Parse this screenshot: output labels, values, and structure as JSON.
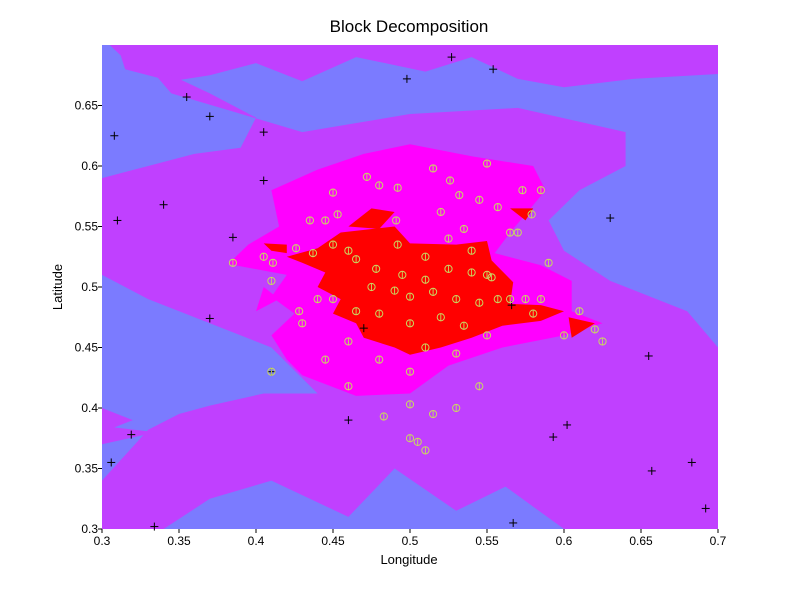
{
  "chart_data": {
    "type": "contour",
    "title": "Block Decomposition",
    "xlabel": "Longitude",
    "ylabel": "Latitude",
    "xlim": [
      0.3,
      0.7
    ],
    "ylim": [
      0.3,
      0.7
    ],
    "x_ticks": [
      {
        "value": 0.3,
        "label": "0.3"
      },
      {
        "value": 0.35,
        "label": "0.35"
      },
      {
        "value": 0.4,
        "label": "0.4"
      },
      {
        "value": 0.45,
        "label": "0.45"
      },
      {
        "value": 0.5,
        "label": "0.5"
      },
      {
        "value": 0.55,
        "label": "0.55"
      },
      {
        "value": 0.6,
        "label": "0.6"
      },
      {
        "value": 0.65,
        "label": "0.65"
      },
      {
        "value": 0.7,
        "label": "0.7"
      }
    ],
    "y_ticks": [
      {
        "value": 0.3,
        "label": "0.3"
      },
      {
        "value": 0.35,
        "label": "0.35"
      },
      {
        "value": 0.4,
        "label": "0.4"
      },
      {
        "value": 0.45,
        "label": "0.45"
      },
      {
        "value": 0.5,
        "label": "0.5"
      },
      {
        "value": 0.55,
        "label": "0.55"
      },
      {
        "value": 0.6,
        "label": "0.6"
      },
      {
        "value": 0.65,
        "label": "0.65"
      }
    ],
    "grid": false,
    "legend": "none",
    "colors": {
      "low": "#7b7bff",
      "mid": "#c040ff",
      "high": "#ff00ff",
      "top": "#ff0000",
      "marker_black": "#000000",
      "marker_yellow": "#c8d860",
      "background": "#ffffff"
    },
    "regions": [
      {
        "level": "mid",
        "points": [
          [
            0.31,
            0.7
          ],
          [
            0.7,
            0.7
          ],
          [
            0.7,
            0.676
          ],
          [
            0.645,
            0.672
          ],
          [
            0.6,
            0.665
          ],
          [
            0.57,
            0.672
          ],
          [
            0.54,
            0.69
          ],
          [
            0.51,
            0.678
          ],
          [
            0.465,
            0.69
          ],
          [
            0.43,
            0.67
          ],
          [
            0.4,
            0.685
          ],
          [
            0.37,
            0.675
          ],
          [
            0.345,
            0.67
          ],
          [
            0.315,
            0.68
          ]
        ]
      },
      {
        "level": "mid",
        "points": [
          [
            0.318,
            0.7
          ],
          [
            0.345,
            0.66
          ],
          [
            0.385,
            0.645
          ],
          [
            0.43,
            0.628
          ],
          [
            0.5,
            0.643
          ],
          [
            0.57,
            0.648
          ],
          [
            0.64,
            0.628
          ],
          [
            0.64,
            0.6
          ],
          [
            0.61,
            0.58
          ],
          [
            0.59,
            0.555
          ],
          [
            0.6,
            0.53
          ],
          [
            0.63,
            0.505
          ],
          [
            0.68,
            0.48
          ],
          [
            0.7,
            0.45
          ],
          [
            0.7,
            0.3
          ],
          [
            0.6,
            0.3
          ],
          [
            0.562,
            0.335
          ],
          [
            0.53,
            0.315
          ],
          [
            0.49,
            0.35
          ],
          [
            0.46,
            0.31
          ],
          [
            0.41,
            0.34
          ],
          [
            0.37,
            0.325
          ],
          [
            0.34,
            0.3
          ],
          [
            0.3,
            0.3
          ],
          [
            0.3,
            0.34
          ],
          [
            0.33,
            0.382
          ],
          [
            0.35,
            0.395
          ],
          [
            0.37,
            0.402
          ],
          [
            0.405,
            0.412
          ],
          [
            0.44,
            0.412
          ],
          [
            0.41,
            0.45
          ],
          [
            0.37,
            0.47
          ],
          [
            0.33,
            0.49
          ],
          [
            0.3,
            0.51
          ],
          [
            0.3,
            0.59
          ],
          [
            0.33,
            0.6
          ],
          [
            0.36,
            0.61
          ],
          [
            0.39,
            0.615
          ],
          [
            0.4,
            0.64
          ],
          [
            0.37,
            0.66
          ],
          [
            0.345,
            0.675
          ],
          [
            0.32,
            0.682
          ],
          [
            0.305,
            0.7
          ]
        ]
      },
      {
        "level": "mid",
        "points": [
          [
            0.3,
            0.37
          ],
          [
            0.335,
            0.38
          ],
          [
            0.3,
            0.385
          ]
        ]
      },
      {
        "level": "mid",
        "points": [
          [
            0.3,
            0.38
          ],
          [
            0.32,
            0.39
          ],
          [
            0.3,
            0.4
          ]
        ]
      },
      {
        "level": "high",
        "points": [
          [
            0.382,
            0.519
          ],
          [
            0.395,
            0.535
          ],
          [
            0.415,
            0.55
          ],
          [
            0.41,
            0.58
          ],
          [
            0.44,
            0.597
          ],
          [
            0.47,
            0.61
          ],
          [
            0.5,
            0.618
          ],
          [
            0.54,
            0.608
          ],
          [
            0.58,
            0.6
          ],
          [
            0.588,
            0.58
          ],
          [
            0.575,
            0.56
          ],
          [
            0.565,
            0.545
          ],
          [
            0.555,
            0.528
          ],
          [
            0.585,
            0.518
          ],
          [
            0.605,
            0.505
          ],
          [
            0.605,
            0.48
          ],
          [
            0.625,
            0.47
          ],
          [
            0.6,
            0.46
          ],
          [
            0.56,
            0.45
          ],
          [
            0.525,
            0.435
          ],
          [
            0.5,
            0.412
          ],
          [
            0.465,
            0.41
          ],
          [
            0.43,
            0.427
          ],
          [
            0.42,
            0.44
          ],
          [
            0.41,
            0.46
          ],
          [
            0.425,
            0.478
          ],
          [
            0.41,
            0.492
          ],
          [
            0.42,
            0.51
          ]
        ]
      },
      {
        "level": "high",
        "points": [
          [
            0.4,
            0.48
          ],
          [
            0.415,
            0.49
          ],
          [
            0.405,
            0.5
          ]
        ]
      },
      {
        "level": "top",
        "points": [
          [
            0.42,
            0.525
          ],
          [
            0.44,
            0.532
          ],
          [
            0.455,
            0.545
          ],
          [
            0.49,
            0.55
          ],
          [
            0.5,
            0.536
          ],
          [
            0.53,
            0.535
          ],
          [
            0.55,
            0.538
          ],
          [
            0.553,
            0.522
          ],
          [
            0.567,
            0.504
          ],
          [
            0.565,
            0.486
          ],
          [
            0.585,
            0.485
          ],
          [
            0.6,
            0.48
          ],
          [
            0.585,
            0.472
          ],
          [
            0.56,
            0.468
          ],
          [
            0.54,
            0.458
          ],
          [
            0.52,
            0.45
          ],
          [
            0.5,
            0.444
          ],
          [
            0.49,
            0.45
          ],
          [
            0.47,
            0.458
          ],
          [
            0.465,
            0.47
          ],
          [
            0.45,
            0.478
          ],
          [
            0.455,
            0.49
          ],
          [
            0.44,
            0.5
          ],
          [
            0.445,
            0.512
          ],
          [
            0.43,
            0.52
          ]
        ]
      },
      {
        "level": "top",
        "points": [
          [
            0.405,
            0.536
          ],
          [
            0.42,
            0.535
          ],
          [
            0.42,
            0.528
          ],
          [
            0.41,
            0.53
          ]
        ]
      },
      {
        "level": "top",
        "points": [
          [
            0.46,
            0.55
          ],
          [
            0.475,
            0.565
          ],
          [
            0.49,
            0.562
          ],
          [
            0.48,
            0.548
          ]
        ]
      },
      {
        "level": "top",
        "points": [
          [
            0.565,
            0.565
          ],
          [
            0.58,
            0.565
          ],
          [
            0.575,
            0.555
          ]
        ]
      },
      {
        "level": "top",
        "points": [
          [
            0.603,
            0.475
          ],
          [
            0.62,
            0.47
          ],
          [
            0.605,
            0.458
          ]
        ]
      }
    ],
    "markers_plus": [
      [
        0.527,
        0.69
      ],
      [
        0.498,
        0.672
      ],
      [
        0.554,
        0.68
      ],
      [
        0.355,
        0.657
      ],
      [
        0.37,
        0.641
      ],
      [
        0.405,
        0.628
      ],
      [
        0.308,
        0.625
      ],
      [
        0.405,
        0.588
      ],
      [
        0.34,
        0.568
      ],
      [
        0.63,
        0.557
      ],
      [
        0.31,
        0.555
      ],
      [
        0.385,
        0.541
      ],
      [
        0.37,
        0.474
      ],
      [
        0.566,
        0.485
      ],
      [
        0.47,
        0.466
      ],
      [
        0.41,
        0.43
      ],
      [
        0.46,
        0.39
      ],
      [
        0.602,
        0.386
      ],
      [
        0.319,
        0.378
      ],
      [
        0.593,
        0.376
      ],
      [
        0.683,
        0.355
      ],
      [
        0.657,
        0.348
      ],
      [
        0.567,
        0.305
      ],
      [
        0.334,
        0.302
      ],
      [
        0.655,
        0.443
      ],
      [
        0.692,
        0.317
      ],
      [
        0.306,
        0.355
      ]
    ],
    "markers_circle": [
      [
        0.472,
        0.591
      ],
      [
        0.48,
        0.584
      ],
      [
        0.492,
        0.582
      ],
      [
        0.515,
        0.598
      ],
      [
        0.526,
        0.588
      ],
      [
        0.55,
        0.602
      ],
      [
        0.573,
        0.58
      ],
      [
        0.585,
        0.58
      ],
      [
        0.532,
        0.576
      ],
      [
        0.545,
        0.572
      ],
      [
        0.557,
        0.566
      ],
      [
        0.579,
        0.56
      ],
      [
        0.445,
        0.555
      ],
      [
        0.453,
        0.56
      ],
      [
        0.491,
        0.555
      ],
      [
        0.52,
        0.562
      ],
      [
        0.535,
        0.548
      ],
      [
        0.57,
        0.545
      ],
      [
        0.426,
        0.532
      ],
      [
        0.411,
        0.52
      ],
      [
        0.437,
        0.528
      ],
      [
        0.45,
        0.535
      ],
      [
        0.465,
        0.523
      ],
      [
        0.492,
        0.535
      ],
      [
        0.51,
        0.525
      ],
      [
        0.525,
        0.54
      ],
      [
        0.54,
        0.53
      ],
      [
        0.478,
        0.515
      ],
      [
        0.495,
        0.51
      ],
      [
        0.51,
        0.506
      ],
      [
        0.525,
        0.515
      ],
      [
        0.54,
        0.512
      ],
      [
        0.553,
        0.508
      ],
      [
        0.475,
        0.5
      ],
      [
        0.49,
        0.497
      ],
      [
        0.5,
        0.492
      ],
      [
        0.515,
        0.496
      ],
      [
        0.53,
        0.49
      ],
      [
        0.545,
        0.487
      ],
      [
        0.557,
        0.49
      ],
      [
        0.575,
        0.49
      ],
      [
        0.58,
        0.478
      ],
      [
        0.45,
        0.49
      ],
      [
        0.465,
        0.48
      ],
      [
        0.48,
        0.478
      ],
      [
        0.5,
        0.47
      ],
      [
        0.52,
        0.475
      ],
      [
        0.535,
        0.468
      ],
      [
        0.55,
        0.46
      ],
      [
        0.46,
        0.455
      ],
      [
        0.48,
        0.44
      ],
      [
        0.5,
        0.43
      ],
      [
        0.51,
        0.45
      ],
      [
        0.53,
        0.445
      ],
      [
        0.545,
        0.418
      ],
      [
        0.5,
        0.403
      ],
      [
        0.515,
        0.395
      ],
      [
        0.41,
        0.505
      ],
      [
        0.44,
        0.49
      ],
      [
        0.428,
        0.48
      ],
      [
        0.43,
        0.47
      ],
      [
        0.445,
        0.44
      ],
      [
        0.385,
        0.52
      ],
      [
        0.41,
        0.43
      ],
      [
        0.55,
        0.51
      ],
      [
        0.565,
        0.49
      ],
      [
        0.585,
        0.49
      ],
      [
        0.6,
        0.46
      ],
      [
        0.61,
        0.48
      ],
      [
        0.62,
        0.465
      ],
      [
        0.625,
        0.455
      ],
      [
        0.59,
        0.52
      ],
      [
        0.565,
        0.545
      ],
      [
        0.435,
        0.555
      ],
      [
        0.45,
        0.578
      ],
      [
        0.46,
        0.53
      ],
      [
        0.405,
        0.525
      ],
      [
        0.46,
        0.418
      ],
      [
        0.483,
        0.393
      ],
      [
        0.5,
        0.375
      ],
      [
        0.51,
        0.365
      ],
      [
        0.53,
        0.4
      ],
      [
        0.505,
        0.372
      ]
    ]
  }
}
